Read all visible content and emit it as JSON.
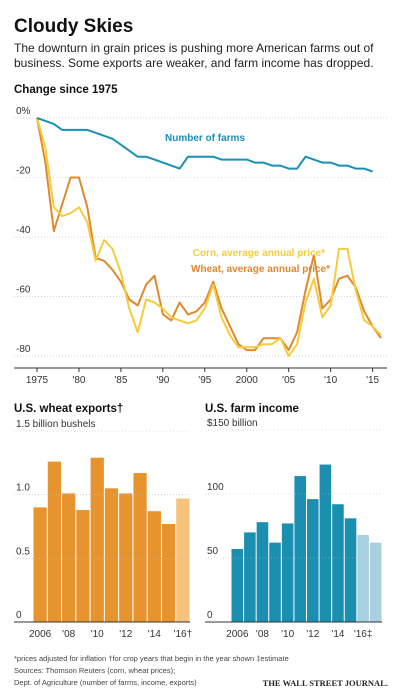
{
  "header": {
    "title": "Cloudy Skies",
    "subtitle": [
      "The downturn in grain prices is pushing more American farms out of",
      "business. Some exports are weaker, and farm income has dropped."
    ]
  },
  "chart_data": [
    {
      "type": "line",
      "title": "Change since 1975",
      "x": [
        1975,
        1976,
        1977,
        1978,
        1979,
        1980,
        1981,
        1982,
        1983,
        1984,
        1985,
        1986,
        1987,
        1988,
        1989,
        1990,
        1991,
        1992,
        1993,
        1994,
        1995,
        1996,
        1997,
        1998,
        1999,
        2000,
        2001,
        2002,
        2003,
        2004,
        2005,
        2006,
        2007,
        2008,
        2009,
        2010,
        2011,
        2012,
        2013,
        2014,
        2015,
        2016
      ],
      "series": [
        {
          "name": "Number of farms",
          "color": "#1a8fb5",
          "values": [
            0,
            -1,
            -2,
            -4,
            -4,
            -4,
            -4,
            -5,
            -6,
            -7,
            -9,
            -11,
            -13,
            -13,
            -14,
            -15,
            -16,
            -17,
            -13,
            -13,
            -13,
            -13,
            -14,
            -14,
            -14,
            -14,
            -15,
            -15,
            -16,
            -16,
            -17,
            -17,
            -13,
            -14,
            -15,
            -15,
            -16,
            -16,
            -17,
            -17,
            -18,
            null
          ]
        },
        {
          "name": "Corn, average annual price*",
          "color": "#f5cc3c",
          "values": [
            0,
            -10,
            -30,
            -33,
            -32,
            -30,
            -35,
            -48,
            -41,
            -44,
            -52,
            -64,
            -72,
            -61,
            -62,
            -64,
            -67,
            -68,
            -69,
            -68,
            -64,
            -56,
            -67,
            -73,
            -77,
            -77,
            -77,
            -76,
            -76,
            -74,
            -80,
            -76,
            -62,
            -54,
            -67,
            -63,
            -44,
            -44,
            -58,
            -68,
            -70,
            -73
          ]
        },
        {
          "name": "Wheat, average annual price*",
          "color": "#e0892d",
          "values": [
            0,
            -15,
            -38,
            -29,
            -20,
            -20,
            -30,
            -47,
            -48,
            -51,
            -55,
            -61,
            -63,
            -56,
            -53,
            -66,
            -68,
            -62,
            -66,
            -65,
            -62,
            -55,
            -64,
            -70,
            -76,
            -78,
            -78,
            -74,
            -74,
            -74,
            -78,
            -72,
            -58,
            -46,
            -64,
            -61,
            -54,
            -53,
            -57,
            -65,
            -70,
            -74
          ]
        }
      ],
      "xlim": [
        1975,
        2016
      ],
      "xticks": [
        1975,
        {
          "value": 1980,
          "label": "'80"
        },
        {
          "value": 1985,
          "label": "'85"
        },
        {
          "value": 1990,
          "label": "'90"
        },
        {
          "value": 1995,
          "label": "'95"
        },
        2000,
        {
          "value": 2005,
          "label": "'05"
        },
        {
          "value": 2010,
          "label": "'10"
        },
        {
          "value": 2015,
          "label": "'15"
        }
      ],
      "ylim": [
        -84,
        2
      ],
      "yticks": [
        {
          "value": 0,
          "label": "0%"
        },
        -20,
        -40,
        -60,
        -80
      ],
      "grid": true
    },
    {
      "type": "bar",
      "title": "U.S. wheat exports†",
      "categories": [
        "2006",
        null,
        "'08",
        null,
        "'10",
        null,
        "'12",
        null,
        "'14",
        null,
        "'16†"
      ],
      "values": [
        0.9,
        1.26,
        1.01,
        0.88,
        1.29,
        1.05,
        1.01,
        1.17,
        0.87,
        0.77,
        0.97
      ],
      "colors": [
        "#e8942e",
        "#e8942e",
        "#e8942e",
        "#e8942e",
        "#e8942e",
        "#e8942e",
        "#e8942e",
        "#e8942e",
        "#e8942e",
        "#e8942e",
        "#f7c27c"
      ],
      "ylim": [
        0,
        1.5
      ],
      "yticks": [
        0,
        0.5,
        {
          "value": 1,
          "label": "1.0"
        },
        {
          "value": 1.5,
          "label": "1.5 billion bushels"
        }
      ],
      "grid": true
    },
    {
      "type": "bar",
      "title": "U.S. farm income",
      "categories": [
        "2006",
        null,
        "'08",
        null,
        "'10",
        null,
        "'12",
        null,
        "'14",
        null,
        "'16‡",
        null
      ],
      "values": [
        57,
        70,
        78,
        62,
        77,
        114,
        96,
        123,
        92,
        81,
        68,
        62
      ],
      "colors": [
        "#1a8fb0",
        "#1a8fb0",
        "#1a8fb0",
        "#1a8fb0",
        "#1a8fb0",
        "#1a8fb0",
        "#1a8fb0",
        "#1a8fb0",
        "#1a8fb0",
        "#1a8fb0",
        "#a9d0e0",
        "#a9d0e0"
      ],
      "ylim": [
        0,
        150
      ],
      "yticks": [
        0,
        50,
        100,
        {
          "value": 150,
          "label": "$150 billion"
        }
      ],
      "grid": true
    }
  ],
  "footer": {
    "notes": "*prices adjusted for inflation   †for crop years that begin in the year shown   ‡estimate",
    "sources": [
      "Sources: Thomson Reuters (corn, wheat prices);",
      "Dept. of Agriculture (number of farms, income, exports)"
    ],
    "credit": "THE WALL STREET JOURNAL."
  }
}
